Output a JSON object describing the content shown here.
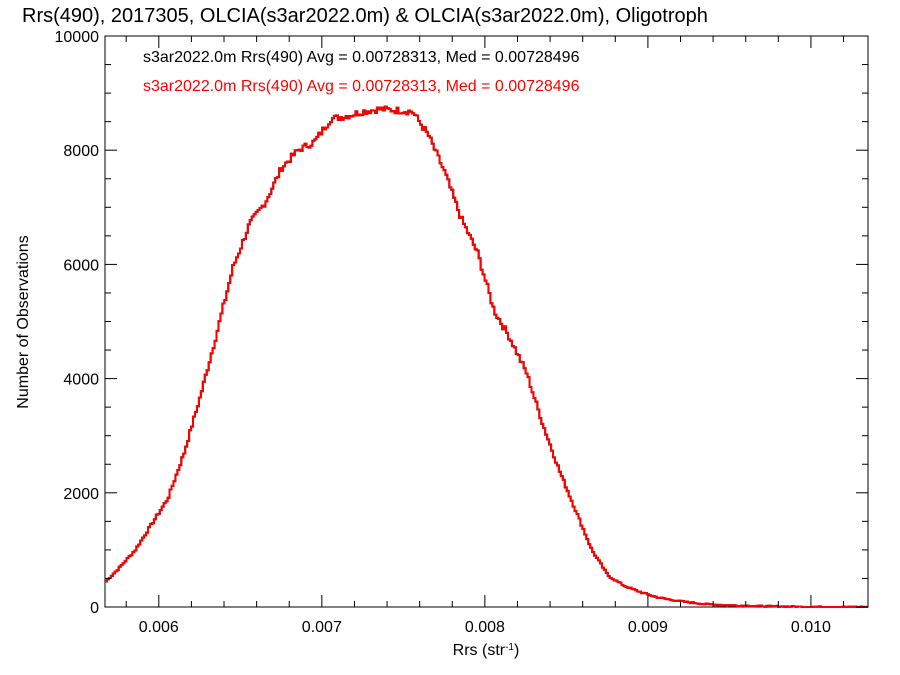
{
  "chart_data": {
    "type": "line",
    "title": "Rrs(490), 2017305, OLCIA(s3ar2022.0m) & OLCIA(s3ar2022.0m), Oligotroph",
    "xlabel": "Rrs (str",
    "xlabel_sup": "-1",
    "xlabel_end": ")",
    "ylabel": "Number of Observations",
    "xlim": [
      0.00567,
      0.01035
    ],
    "ylim": [
      0,
      10000
    ],
    "xticks": [
      0.006,
      0.007,
      0.008,
      0.009,
      0.01
    ],
    "xtick_labels": [
      "0.006",
      "0.007",
      "0.008",
      "0.009",
      "0.010"
    ],
    "yticks": [
      0,
      2000,
      4000,
      6000,
      8000,
      10000
    ],
    "ytick_labels": [
      "0",
      "2000",
      "4000",
      "6000",
      "8000",
      "10000"
    ],
    "grid": false,
    "series": [
      {
        "name": "s3ar2022.0m Rrs(490) Avg = 0.00728313, Med = 0.00728496",
        "color": "#000000",
        "x": [
          0.00567,
          0.00575,
          0.00585,
          0.00595,
          0.00605,
          0.00615,
          0.00625,
          0.00635,
          0.00645,
          0.00655,
          0.00665,
          0.00675,
          0.00685,
          0.00695,
          0.00705,
          0.00715,
          0.00725,
          0.00735,
          0.00745,
          0.00755,
          0.00765,
          0.00775,
          0.00785,
          0.00795,
          0.00805,
          0.00815,
          0.00825,
          0.00835,
          0.00845,
          0.00855,
          0.00865,
          0.00875,
          0.00885,
          0.00895,
          0.00905,
          0.00915,
          0.00925,
          0.00935,
          0.00945,
          0.00955,
          0.00965,
          0.00975,
          0.00985,
          0.00995,
          0.01005,
          0.01015,
          0.01025,
          0.01035
        ],
        "y": [
          450,
          680,
          1000,
          1450,
          1900,
          2700,
          3700,
          4800,
          5950,
          6700,
          7100,
          7700,
          8000,
          8150,
          8550,
          8600,
          8680,
          8720,
          8700,
          8680,
          8250,
          7600,
          6800,
          6200,
          5200,
          4700,
          4100,
          3200,
          2400,
          1700,
          1000,
          550,
          370,
          260,
          170,
          120,
          80,
          50,
          35,
          25,
          18,
          12,
          8,
          5,
          3,
          2,
          1,
          0
        ]
      },
      {
        "name": "s3ar2022.0m Rrs(490) Avg = 0.00728313, Med = 0.00728496",
        "color": "#ff0000",
        "x": [
          0.00567,
          0.00575,
          0.00585,
          0.00595,
          0.00605,
          0.00615,
          0.00625,
          0.00635,
          0.00645,
          0.00655,
          0.00665,
          0.00675,
          0.00685,
          0.00695,
          0.00705,
          0.00715,
          0.00725,
          0.00735,
          0.00745,
          0.00755,
          0.00765,
          0.00775,
          0.00785,
          0.00795,
          0.00805,
          0.00815,
          0.00825,
          0.00835,
          0.00845,
          0.00855,
          0.00865,
          0.00875,
          0.00885,
          0.00895,
          0.00905,
          0.00915,
          0.00925,
          0.00935,
          0.00945,
          0.00955,
          0.00965,
          0.00975,
          0.00985,
          0.00995,
          0.01005,
          0.01015,
          0.01025,
          0.01035
        ],
        "y": [
          450,
          680,
          1000,
          1450,
          1900,
          2700,
          3700,
          4800,
          5950,
          6700,
          7100,
          7700,
          8000,
          8150,
          8550,
          8600,
          8680,
          8720,
          8700,
          8680,
          8250,
          7600,
          6800,
          6200,
          5200,
          4700,
          4100,
          3200,
          2400,
          1700,
          1000,
          550,
          370,
          260,
          170,
          120,
          80,
          50,
          35,
          25,
          18,
          12,
          8,
          5,
          3,
          2,
          1,
          0
        ]
      }
    ]
  }
}
